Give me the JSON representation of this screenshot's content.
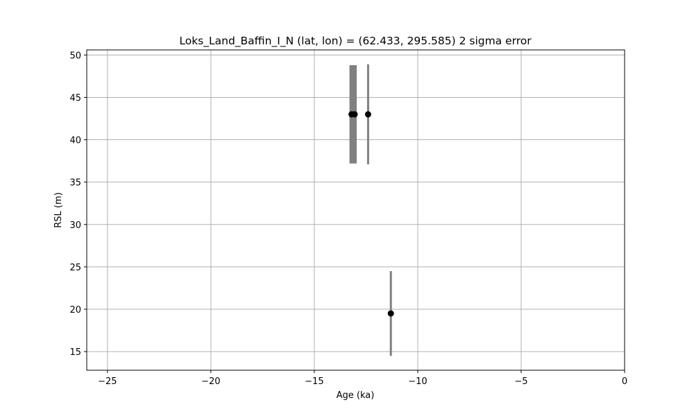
{
  "chart_data": {
    "type": "scatter",
    "title": "Loks_Land_Baffin_I_N (lat, lon) = (62.433, 295.585)  2 sigma error",
    "xlabel": "Age (ka)",
    "ylabel": "RSL (m)",
    "xlim": [
      -26,
      0
    ],
    "ylim": [
      12.8,
      50.6
    ],
    "xticks": [
      -25,
      -20,
      -15,
      -10,
      -5,
      0
    ],
    "xtick_labels": [
      "−25",
      "−20",
      "−15",
      "−10",
      "−5",
      "0"
    ],
    "yticks": [
      15,
      20,
      25,
      30,
      35,
      40,
      45,
      50
    ],
    "ytick_labels": [
      "15",
      "20",
      "25",
      "30",
      "35",
      "40",
      "45",
      "50"
    ],
    "grid": true,
    "points": [
      {
        "x": -13.2,
        "y": 43.0,
        "y_low": 37.2,
        "y_high": 48.8,
        "x_low": -13.3,
        "x_high": -13.1
      },
      {
        "x": -13.05,
        "y": 43.0,
        "y_low": 37.2,
        "y_high": 48.8,
        "x_low": -13.15,
        "x_high": -12.95
      },
      {
        "x": -12.4,
        "y": 43.0,
        "y_low": 37.1,
        "y_high": 48.9,
        "x_low": -12.45,
        "x_high": -12.35
      },
      {
        "x": -11.3,
        "y": 19.5,
        "y_low": 14.5,
        "y_high": 24.5,
        "x_low": -11.35,
        "x_high": -11.25
      }
    ],
    "colors": {
      "marker": "#000000",
      "error": "#808080",
      "grid": "#b0b0b0",
      "axes": "#000000"
    }
  }
}
